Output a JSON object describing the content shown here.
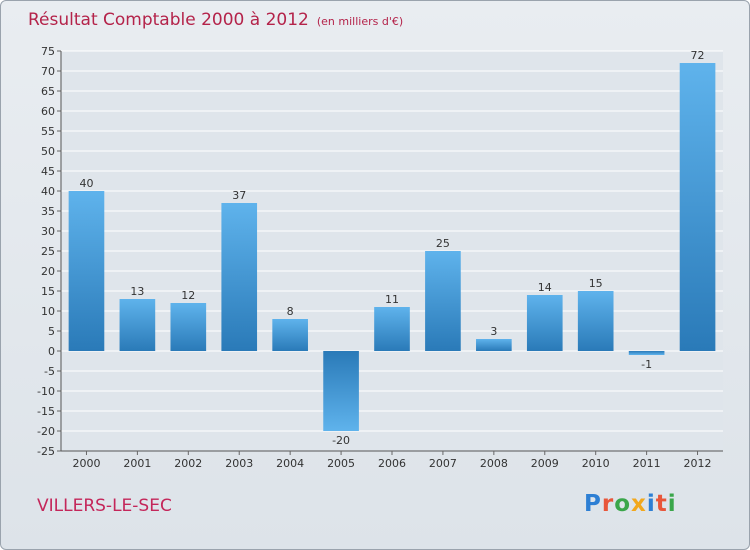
{
  "header": {
    "title": "Résultat Comptable 2000 à 2012",
    "unit": "(en milliers d'€)"
  },
  "footer": {
    "commune": "VILLERS-LE-SEC",
    "logo_letters": [
      {
        "ch": "P",
        "color": "#2d7fd4"
      },
      {
        "ch": "r",
        "color": "#e8563a"
      },
      {
        "ch": "o",
        "color": "#3aa64a"
      },
      {
        "ch": "x",
        "color": "#f2a81d"
      },
      {
        "ch": "i",
        "color": "#2d7fd4"
      },
      {
        "ch": "t",
        "color": "#e8563a"
      },
      {
        "ch": "i",
        "color": "#3aa64a"
      }
    ]
  },
  "colors": {
    "bar_light": "#5fb3ec",
    "bar_dark": "#2a7ab8",
    "title": "#b4234a",
    "grid": "#ffffff"
  },
  "chart_data": {
    "type": "bar",
    "title": "Résultat Comptable 2000 à 2012",
    "ylabel": "en milliers d'€",
    "xlabel": "",
    "categories": [
      "2000",
      "2001",
      "2002",
      "2003",
      "2004",
      "2005",
      "2006",
      "2007",
      "2008",
      "2009",
      "2010",
      "2011",
      "2012"
    ],
    "values": [
      40,
      13,
      12,
      37,
      8,
      -20,
      11,
      25,
      3,
      14,
      15,
      -1,
      72
    ],
    "ylim": [
      -25,
      75
    ],
    "ystep": 5,
    "grid": true,
    "legend": "none"
  }
}
